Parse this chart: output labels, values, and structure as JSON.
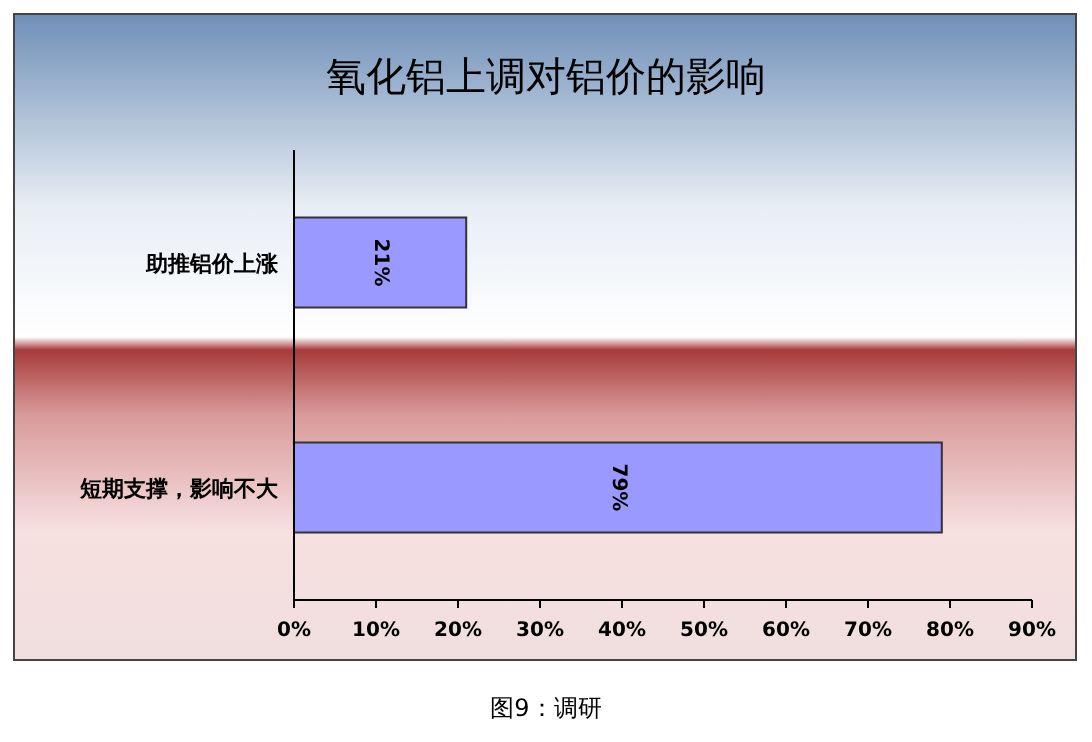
{
  "chart_data": {
    "type": "bar",
    "orientation": "horizontal",
    "title": "氧化铝上调对铝价的影响",
    "categories": [
      "助推铝价上涨",
      "短期支撑，影响不大"
    ],
    "values": [
      21,
      79
    ],
    "color": "#9999ff",
    "value_labels": [
      "21%",
      "79%"
    ],
    "xlim": [
      0,
      90
    ],
    "xticks": [
      {
        "value": 0,
        "label": "0%"
      },
      {
        "value": 10,
        "label": "10%"
      },
      {
        "value": 20,
        "label": "20%"
      },
      {
        "value": 30,
        "label": "30%"
      },
      {
        "value": 40,
        "label": "40%"
      },
      {
        "value": 50,
        "label": "50%"
      },
      {
        "value": 60,
        "label": "60%"
      },
      {
        "value": 70,
        "label": "70%"
      },
      {
        "value": 80,
        "label": "80%"
      },
      {
        "value": 90,
        "label": "90%"
      }
    ],
    "annotations": [
      "图9：调研"
    ]
  }
}
